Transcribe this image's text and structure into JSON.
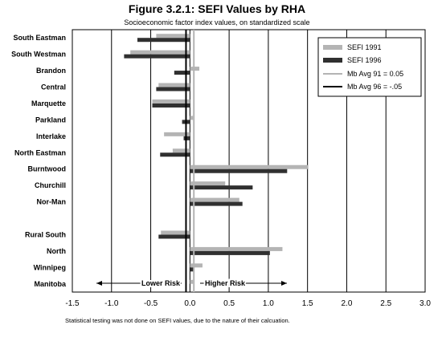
{
  "chart_data": {
    "type": "bar",
    "orientation": "horizontal",
    "title": "Figure 3.2.1: SEFI Values by RHA",
    "subtitle": "Socioeconomic factor index values, on standardized scale",
    "categories": [
      "South Eastman",
      "South Westman",
      "Brandon",
      "Central",
      "Marquette",
      "Parkland",
      "Interlake",
      "North Eastman",
      "Burntwood",
      "Churchill",
      "Nor-Man",
      "",
      "Rural South",
      "North",
      "Winnipeg",
      "Manitoba"
    ],
    "series": [
      {
        "name": "SEFI 1991",
        "color": "#b4b4b4",
        "values": [
          -0.43,
          -0.76,
          0.12,
          -0.4,
          -0.48,
          0.04,
          -0.33,
          -0.22,
          1.51,
          0.45,
          0.63,
          null,
          -0.37,
          1.18,
          0.16,
          0.04
        ]
      },
      {
        "name": "SEFI 1996",
        "color": "#303030",
        "values": [
          -0.67,
          -0.84,
          -0.2,
          -0.43,
          -0.48,
          -0.1,
          -0.08,
          -0.38,
          1.24,
          0.8,
          0.67,
          null,
          -0.4,
          1.02,
          0.05,
          0.0
        ]
      }
    ],
    "reference_lines": [
      {
        "name": "Mb Avg 91 = 0.05",
        "value": 0.05,
        "color": "#b4b4b4"
      },
      {
        "name": "Mb Avg 96 = -.05",
        "value": -0.05,
        "color": "#000000"
      }
    ],
    "xlim": [
      -1.5,
      3.0
    ],
    "xticks": [
      "-1.5",
      "-1.0",
      "-0.5",
      "0.0",
      "0.5",
      "1.0",
      "1.5",
      "2.0",
      "2.5",
      "3.0"
    ],
    "xtick_values": [
      -1.5,
      -1.0,
      -0.5,
      0.0,
      0.5,
      1.0,
      1.5,
      2.0,
      2.5,
      3.0
    ],
    "grid": true,
    "legend_position": "top-right",
    "annotations": {
      "lower": "Lower Risk",
      "higher": "Higher Risk"
    },
    "footnote": "Statistical testing was not done on SEFI values, due to the nature of their calcuation."
  }
}
